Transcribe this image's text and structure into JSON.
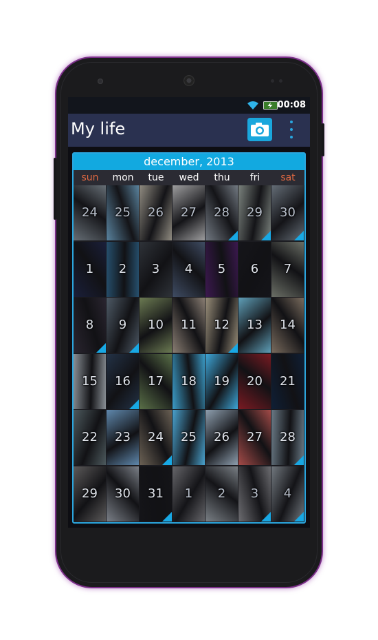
{
  "status_bar": {
    "time": "00:08",
    "icons": [
      "wifi-icon",
      "battery-charging-icon"
    ]
  },
  "action_bar": {
    "title": "My life",
    "camera_icon": "camera-icon",
    "menu_icon": "overflow-menu-icon"
  },
  "calendar": {
    "month_label": "december, 2013",
    "weekdays": [
      "sun",
      "mon",
      "tue",
      "wed",
      "thu",
      "fri",
      "sat"
    ],
    "weekend_color": "#e56a42",
    "accent_color": "#18a8e4",
    "days": [
      {
        "label": "24",
        "outside": true,
        "bg": "#7f8a92",
        "corner": false
      },
      {
        "label": "25",
        "outside": true,
        "bg": "#6fa6c9",
        "corner": false
      },
      {
        "label": "26",
        "outside": true,
        "bg": "#b8b2a2",
        "corner": false
      },
      {
        "label": "27",
        "outside": true,
        "bg": "#c9c9c9",
        "corner": false
      },
      {
        "label": "28",
        "outside": true,
        "bg": "#8f99a3",
        "corner": true
      },
      {
        "label": "29",
        "outside": true,
        "bg": "#9aa49c",
        "corner": true
      },
      {
        "label": "30",
        "outside": true,
        "bg": "#7c8893",
        "corner": true
      },
      {
        "label": "1",
        "bg": "#1a1f3a",
        "corner": false
      },
      {
        "label": "2",
        "bg": "#26506e",
        "corner": false
      },
      {
        "label": "3",
        "bg": "#2e3238",
        "corner": false
      },
      {
        "label": "4",
        "bg": "#3f4c63",
        "corner": false
      },
      {
        "label": "5",
        "bg": "#3c1850",
        "corner": false
      },
      {
        "label": "6",
        "bg": "#15151a",
        "corner": false
      },
      {
        "label": "7",
        "bg": "#6b6f66",
        "corner": false
      },
      {
        "label": "8",
        "bg": "#2a2530",
        "corner": true
      },
      {
        "label": "9",
        "bg": "#4e5a66",
        "corner": true
      },
      {
        "label": "10",
        "bg": "#6b7a52",
        "corner": false
      },
      {
        "label": "11",
        "bg": "#8b7f74",
        "corner": false
      },
      {
        "label": "12",
        "bg": "#9a8f7a",
        "corner": true
      },
      {
        "label": "13",
        "bg": "#5f9fb8",
        "corner": false
      },
      {
        "label": "14",
        "bg": "#7a6c5e",
        "corner": false
      },
      {
        "label": "15",
        "bg": "#8a9096",
        "corner": false
      },
      {
        "label": "16",
        "bg": "#233246",
        "corner": true
      },
      {
        "label": "17",
        "bg": "#5a7048",
        "corner": false
      },
      {
        "label": "18",
        "bg": "#3b9cc8",
        "corner": false
      },
      {
        "label": "19",
        "bg": "#3ea7d9",
        "corner": false
      },
      {
        "label": "20",
        "bg": "#7a1a22",
        "corner": false
      },
      {
        "label": "21",
        "bg": "#0f1f36",
        "corner": false
      },
      {
        "label": "22",
        "bg": "#4d5a5e",
        "corner": false
      },
      {
        "label": "23",
        "bg": "#5f88ad",
        "corner": false
      },
      {
        "label": "24",
        "bg": "#6c6255",
        "corner": true
      },
      {
        "label": "25",
        "bg": "#4aa3cf",
        "corner": false
      },
      {
        "label": "26",
        "bg": "#8fa0b0",
        "corner": false
      },
      {
        "label": "27",
        "bg": "#a44b48",
        "corner": false
      },
      {
        "label": "28",
        "bg": "#6a7a86",
        "corner": true
      },
      {
        "label": "29",
        "bg": "#5c5a5a",
        "corner": false
      },
      {
        "label": "30",
        "bg": "#7b8088",
        "corner": false
      },
      {
        "label": "31",
        "bg": "#141418",
        "corner": true
      },
      {
        "label": "1",
        "outside": true,
        "bg": "#7e7e82",
        "corner": false
      },
      {
        "label": "2",
        "outside": true,
        "bg": "#9aa2a8",
        "corner": false
      },
      {
        "label": "3",
        "outside": true,
        "bg": "#88888c",
        "corner": true
      },
      {
        "label": "4",
        "outside": true,
        "bg": "#8e979e",
        "corner": true
      }
    ]
  }
}
